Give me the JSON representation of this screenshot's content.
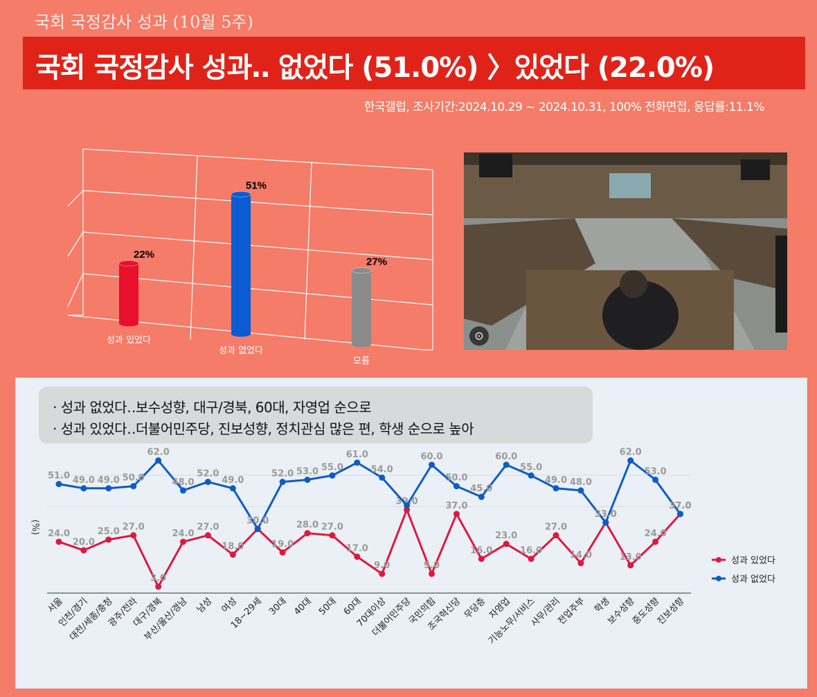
{
  "header": {
    "subtitle": "국회 국정감사 성과 (10월 5주)",
    "headline": "국회 국정감사 성과‥ 없었다 (51.0%) 〉있었다 (22.0%)",
    "source": "한국갤럽, 조사기간:2024.10.29 ~ 2024.10.31, 100% 전화면접, 응답률:11.1%"
  },
  "summary": {
    "line1": "· 성과 없었다‥보수성향, 대구/경북, 60대, 자영업 순으로",
    "line2": "· 성과 있었다‥더불어민주당, 진보성향, 정치관심 많은 편, 학생 순으로 높아"
  },
  "photo": {
    "lens_icon": "lens-icon"
  },
  "chart_data": [
    {
      "type": "bar",
      "categories": [
        "성과 있었다",
        "성과 없었다",
        "모름"
      ],
      "values": [
        22,
        51,
        27
      ],
      "value_labels": [
        "22%",
        "51%",
        "27%"
      ],
      "colors": [
        "#e8102c",
        "#0b5bd3",
        "#8a8a8a"
      ],
      "ylim": [
        0,
        70
      ],
      "grid": true
    },
    {
      "type": "line",
      "ylabel": "(%)",
      "ylim": [
        0,
        70
      ],
      "categories": [
        "서울",
        "인천/경기",
        "대전/세종/충청",
        "광주/전라",
        "대구/경북",
        "부산/울산/경남",
        "남성",
        "여성",
        "18~29세",
        "30대",
        "40대",
        "50대",
        "60대",
        "70대이상",
        "더불어민주당",
        "국민의힘",
        "조국혁신당",
        "무당층",
        "자영업",
        "기능노무/서비스",
        "사무/관리",
        "전업주부",
        "학생",
        "보수성향",
        "중도성향",
        "진보성향"
      ],
      "series": [
        {
          "name": "성과 있었다",
          "color": "#e0173e",
          "values": [
            24.0,
            20.0,
            25.0,
            27.0,
            3.0,
            24.0,
            27.0,
            18.0,
            30.0,
            19.0,
            28.0,
            27.0,
            17.0,
            9.0,
            39.0,
            9.0,
            37.0,
            16.0,
            23.0,
            16.0,
            27.0,
            14.0,
            33.0,
            13.0,
            24.0,
            37.0
          ],
          "labels": [
            "24.0",
            "20.0",
            "25.0",
            "27.0",
            "3.0",
            "24.0",
            "27.0",
            "18.0",
            "30.0",
            "19.0",
            "28.0",
            "27.0",
            "17.0",
            "9.0",
            "39.0",
            "9.0",
            "37.0",
            "16.0",
            "23.0",
            "16.0",
            "27.0",
            "14.0",
            "33.0",
            "13.0",
            "24.0",
            "37.0"
          ]
        },
        {
          "name": "성과 없었다",
          "color": "#0d5bc6",
          "values": [
            51.0,
            49.0,
            49.0,
            50.0,
            62.0,
            48.0,
            52.0,
            49.0,
            30.0,
            52.0,
            53.0,
            55.0,
            61.0,
            54.0,
            41.0,
            60.0,
            50.0,
            45.0,
            60.0,
            55.0,
            49.0,
            48.0,
            33.0,
            62.0,
            53.0,
            37.0
          ],
          "labels": [
            "51.0",
            "49.0",
            "49.0",
            "50.0",
            "62.0",
            "48.0",
            "52.0",
            "49.0",
            "30.0",
            "52.0",
            "53.0",
            "55.0",
            "61.0",
            "54.0",
            "",
            "60.0",
            "50.0",
            "45.0",
            "60.0",
            "55.0",
            "49.0",
            "48.0",
            "33.0",
            "62.0",
            "53.0",
            "37.0"
          ]
        }
      ],
      "legend_position": "right",
      "grid": true
    }
  ]
}
